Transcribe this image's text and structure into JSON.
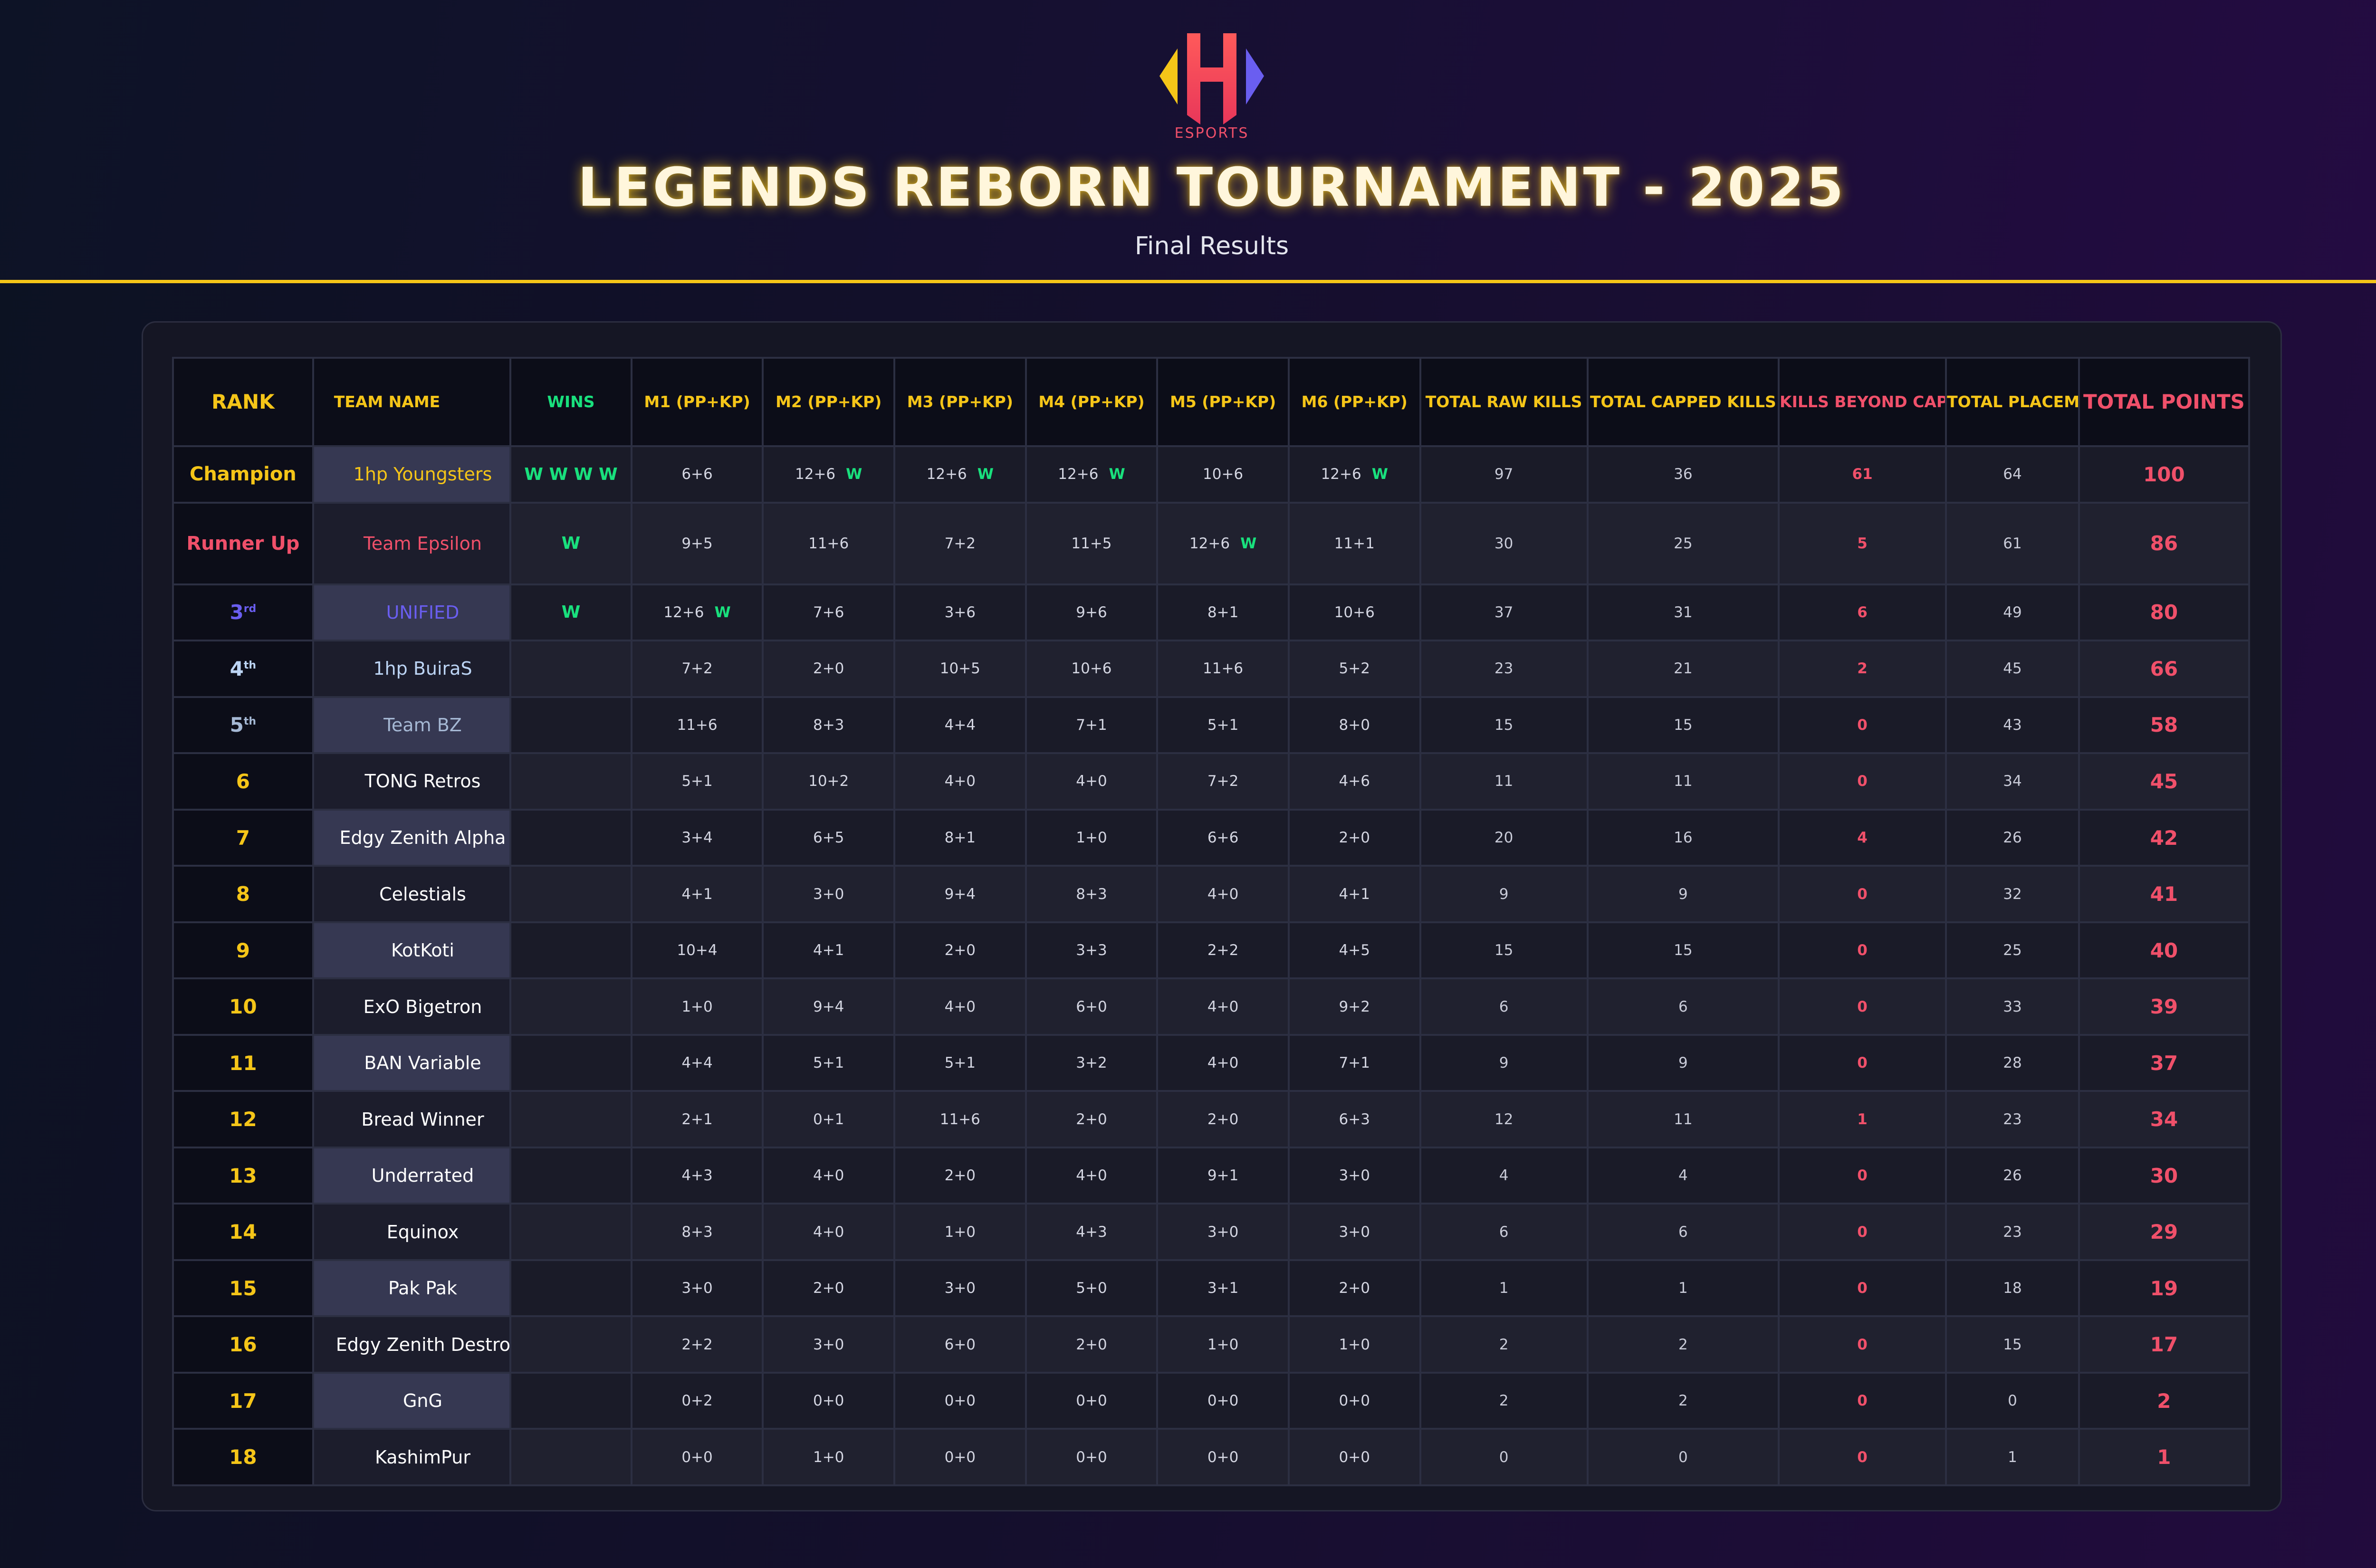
{
  "header": {
    "logo_text": "ESPORTS",
    "logo_icon": "h-esports-logo-icon",
    "title": "LEGENDS REBORN TOURNAMENT - 2025",
    "subtitle": "Final Results"
  },
  "colors": {
    "accent_gold": "#f5c518",
    "accent_red": "#f0506a",
    "win_green": "#19e07d",
    "third_purple": "#6a5ef0"
  },
  "table": {
    "columns": [
      "RANK",
      "TEAM NAME",
      "WINS",
      "M1 (PP+KP)",
      "M2 (PP+KP)",
      "M3 (PP+KP)",
      "M4 (PP+KP)",
      "M5 (PP+KP)",
      "M6 (PP+KP)",
      "TOTAL RAW KILLS",
      "TOTAL CAPPED KILLS",
      "KILLS BEYOND CAP",
      "TOTAL PLACEMENT POINTS",
      "TOTAL POINTS"
    ],
    "rows": [
      {
        "rank": "Champion",
        "team": "1hp Youngsters",
        "wins": "W W W W",
        "m1": "6+6",
        "m1w": "",
        "m2": "12+6",
        "m2w": "W",
        "m3": "12+6",
        "m3w": "W",
        "m4": "12+6",
        "m4w": "W",
        "m5": "10+6",
        "m5w": "",
        "m6": "12+6",
        "m6w": "W",
        "raw": "97",
        "capped": "36",
        "beyond": "61",
        "placement": "64",
        "total": "100"
      },
      {
        "rank": "Runner Up",
        "team": "Team Epsilon",
        "wins": "W",
        "m1": "9+5",
        "m1w": "",
        "m2": "11+6",
        "m2w": "",
        "m3": "7+2",
        "m3w": "",
        "m4": "11+5",
        "m4w": "",
        "m5": "12+6",
        "m5w": "W",
        "m6": "11+1",
        "m6w": "",
        "raw": "30",
        "capped": "25",
        "beyond": "5",
        "placement": "61",
        "total": "86"
      },
      {
        "rank": "3",
        "rank_sup": "rd",
        "team": "UNIFIED",
        "wins": "W",
        "m1": "12+6",
        "m1w": "W",
        "m2": "7+6",
        "m2w": "",
        "m3": "3+6",
        "m3w": "",
        "m4": "9+6",
        "m4w": "",
        "m5": "8+1",
        "m5w": "",
        "m6": "10+6",
        "m6w": "",
        "raw": "37",
        "capped": "31",
        "beyond": "6",
        "placement": "49",
        "total": "80"
      },
      {
        "rank": "4",
        "rank_sup": "th",
        "team": "1hp BuiraS",
        "wins": "",
        "m1": "7+2",
        "m1w": "",
        "m2": "2+0",
        "m2w": "",
        "m3": "10+5",
        "m3w": "",
        "m4": "10+6",
        "m4w": "",
        "m5": "11+6",
        "m5w": "",
        "m6": "5+2",
        "m6w": "",
        "raw": "23",
        "capped": "21",
        "beyond": "2",
        "placement": "45",
        "total": "66"
      },
      {
        "rank": "5",
        "rank_sup": "th",
        "team": "Team BZ",
        "wins": "",
        "m1": "11+6",
        "m1w": "",
        "m2": "8+3",
        "m2w": "",
        "m3": "4+4",
        "m3w": "",
        "m4": "7+1",
        "m4w": "",
        "m5": "5+1",
        "m5w": "",
        "m6": "8+0",
        "m6w": "",
        "raw": "15",
        "capped": "15",
        "beyond": "0",
        "placement": "43",
        "total": "58"
      },
      {
        "rank": "6",
        "team": "TONG Retros",
        "wins": "",
        "m1": "5+1",
        "m1w": "",
        "m2": "10+2",
        "m2w": "",
        "m3": "4+0",
        "m3w": "",
        "m4": "4+0",
        "m4w": "",
        "m5": "7+2",
        "m5w": "",
        "m6": "4+6",
        "m6w": "",
        "raw": "11",
        "capped": "11",
        "beyond": "0",
        "placement": "34",
        "total": "45"
      },
      {
        "rank": "7",
        "team": "Edgy Zenith Alpha",
        "wins": "",
        "m1": "3+4",
        "m1w": "",
        "m2": "6+5",
        "m2w": "",
        "m3": "8+1",
        "m3w": "",
        "m4": "1+0",
        "m4w": "",
        "m5": "6+6",
        "m5w": "",
        "m6": "2+0",
        "m6w": "",
        "raw": "20",
        "capped": "16",
        "beyond": "4",
        "placement": "26",
        "total": "42"
      },
      {
        "rank": "8",
        "team": "Celestials",
        "wins": "",
        "m1": "4+1",
        "m1w": "",
        "m2": "3+0",
        "m2w": "",
        "m3": "9+4",
        "m3w": "",
        "m4": "8+3",
        "m4w": "",
        "m5": "4+0",
        "m5w": "",
        "m6": "4+1",
        "m6w": "",
        "raw": "9",
        "capped": "9",
        "beyond": "0",
        "placement": "32",
        "total": "41"
      },
      {
        "rank": "9",
        "team": "KotKoti",
        "wins": "",
        "m1": "10+4",
        "m1w": "",
        "m2": "4+1",
        "m2w": "",
        "m3": "2+0",
        "m3w": "",
        "m4": "3+3",
        "m4w": "",
        "m5": "2+2",
        "m5w": "",
        "m6": "4+5",
        "m6w": "",
        "raw": "15",
        "capped": "15",
        "beyond": "0",
        "placement": "25",
        "total": "40"
      },
      {
        "rank": "10",
        "team": "ExO Bigetron",
        "wins": "",
        "m1": "1+0",
        "m1w": "",
        "m2": "9+4",
        "m2w": "",
        "m3": "4+0",
        "m3w": "",
        "m4": "6+0",
        "m4w": "",
        "m5": "4+0",
        "m5w": "",
        "m6": "9+2",
        "m6w": "",
        "raw": "6",
        "capped": "6",
        "beyond": "0",
        "placement": "33",
        "total": "39"
      },
      {
        "rank": "11",
        "team": "BAN Variable",
        "wins": "",
        "m1": "4+4",
        "m1w": "",
        "m2": "5+1",
        "m2w": "",
        "m3": "5+1",
        "m3w": "",
        "m4": "3+2",
        "m4w": "",
        "m5": "4+0",
        "m5w": "",
        "m6": "7+1",
        "m6w": "",
        "raw": "9",
        "capped": "9",
        "beyond": "0",
        "placement": "28",
        "total": "37"
      },
      {
        "rank": "12",
        "team": "Bread Winner",
        "wins": "",
        "m1": "2+1",
        "m1w": "",
        "m2": "0+1",
        "m2w": "",
        "m3": "11+6",
        "m3w": "",
        "m4": "2+0",
        "m4w": "",
        "m5": "2+0",
        "m5w": "",
        "m6": "6+3",
        "m6w": "",
        "raw": "12",
        "capped": "11",
        "beyond": "1",
        "placement": "23",
        "total": "34"
      },
      {
        "rank": "13",
        "team": "Underrated",
        "wins": "",
        "m1": "4+3",
        "m1w": "",
        "m2": "4+0",
        "m2w": "",
        "m3": "2+0",
        "m3w": "",
        "m4": "4+0",
        "m4w": "",
        "m5": "9+1",
        "m5w": "",
        "m6": "3+0",
        "m6w": "",
        "raw": "4",
        "capped": "4",
        "beyond": "0",
        "placement": "26",
        "total": "30"
      },
      {
        "rank": "14",
        "team": "Equinox",
        "wins": "",
        "m1": "8+3",
        "m1w": "",
        "m2": "4+0",
        "m2w": "",
        "m3": "1+0",
        "m3w": "",
        "m4": "4+3",
        "m4w": "",
        "m5": "3+0",
        "m5w": "",
        "m6": "3+0",
        "m6w": "",
        "raw": "6",
        "capped": "6",
        "beyond": "0",
        "placement": "23",
        "total": "29"
      },
      {
        "rank": "15",
        "team": "Pak Pak",
        "wins": "",
        "m1": "3+0",
        "m1w": "",
        "m2": "2+0",
        "m2w": "",
        "m3": "3+0",
        "m3w": "",
        "m4": "5+0",
        "m4w": "",
        "m5": "3+1",
        "m5w": "",
        "m6": "2+0",
        "m6w": "",
        "raw": "1",
        "capped": "1",
        "beyond": "0",
        "placement": "18",
        "total": "19"
      },
      {
        "rank": "16",
        "team": "Edgy Zenith Destro",
        "wins": "",
        "m1": "2+2",
        "m1w": "",
        "m2": "3+0",
        "m2w": "",
        "m3": "6+0",
        "m3w": "",
        "m4": "2+0",
        "m4w": "",
        "m5": "1+0",
        "m5w": "",
        "m6": "1+0",
        "m6w": "",
        "raw": "2",
        "capped": "2",
        "beyond": "0",
        "placement": "15",
        "total": "17"
      },
      {
        "rank": "17",
        "team": "GnG",
        "wins": "",
        "m1": "0+2",
        "m1w": "",
        "m2": "0+0",
        "m2w": "",
        "m3": "0+0",
        "m3w": "",
        "m4": "0+0",
        "m4w": "",
        "m5": "0+0",
        "m5w": "",
        "m6": "0+0",
        "m6w": "",
        "raw": "2",
        "capped": "2",
        "beyond": "0",
        "placement": "0",
        "total": "2"
      },
      {
        "rank": "18",
        "team": "KashimPur",
        "wins": "",
        "m1": "0+0",
        "m1w": "",
        "m2": "1+0",
        "m2w": "",
        "m3": "0+0",
        "m3w": "",
        "m4": "0+0",
        "m4w": "",
        "m5": "0+0",
        "m5w": "",
        "m6": "0+0",
        "m6w": "",
        "raw": "0",
        "capped": "0",
        "beyond": "0",
        "placement": "1",
        "total": "1"
      }
    ]
  }
}
